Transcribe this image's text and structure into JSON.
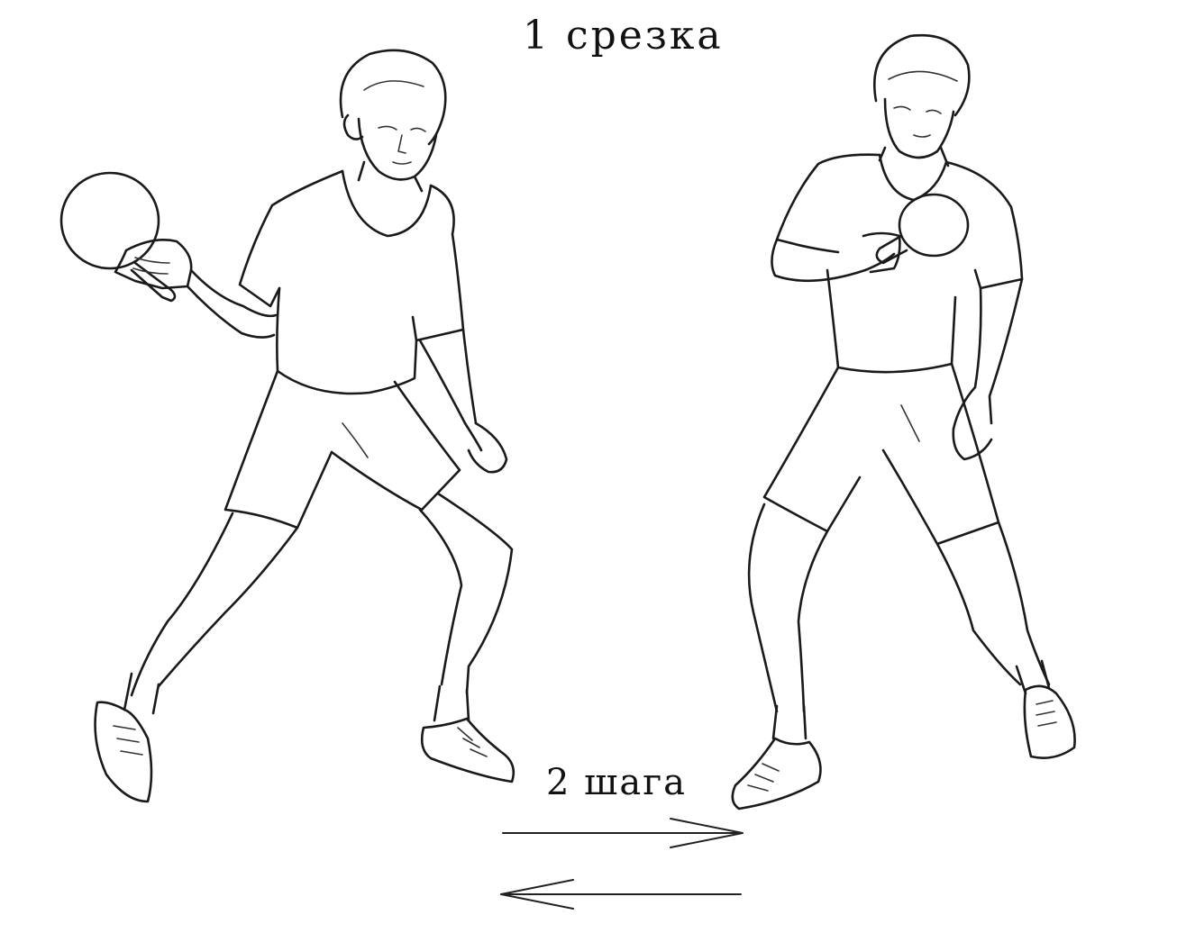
{
  "title": "1 срезка",
  "steps_label": "2 шага",
  "figures": {
    "left_player": "player-backhand-ready",
    "right_player": "player-after-cut-step"
  },
  "arrows": {
    "top": "arrow-right",
    "bottom": "arrow-left"
  },
  "colors": {
    "ink": "#1a1a1a",
    "background": "#ffffff"
  }
}
